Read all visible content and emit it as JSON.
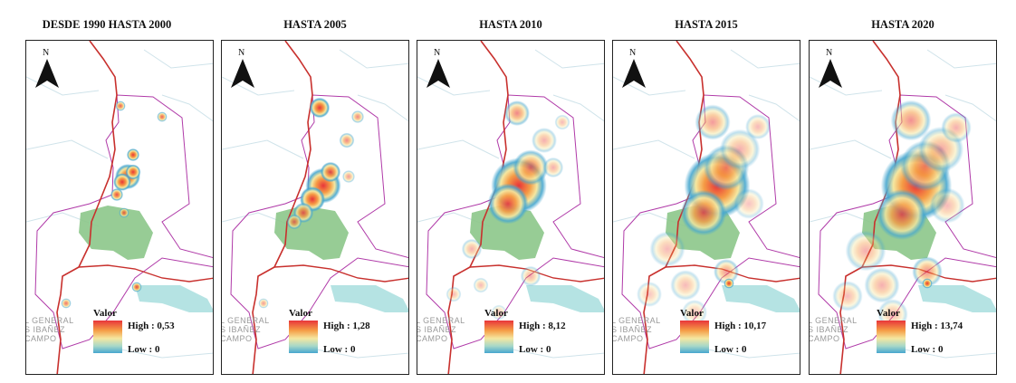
{
  "panels": [
    {
      "title": "DESDE 1990 HASTA 2000",
      "legend_title": "Valor",
      "high": "High : 0,53",
      "low": "Low : 0",
      "place_label": [
        "L GENERAL",
        "S IBAÑEZ",
        "CAMPO"
      ]
    },
    {
      "title": "HASTA 2005",
      "legend_title": "Valor",
      "high": "High : 1,28",
      "low": "Low : 0",
      "place_label": [
        "L GENERAL",
        "S IBAÑEZ",
        "CAMPO"
      ]
    },
    {
      "title": "HASTA 2010",
      "legend_title": "Valor",
      "high": "High : 8,12",
      "low": "Low : 0",
      "place_label": [
        "L GENERAL",
        "S IBAÑEZ",
        "CAMPO"
      ]
    },
    {
      "title": "HASTA 2015",
      "legend_title": "Valor",
      "high": "High : 10,17",
      "low": "Low : 0",
      "place_label": [
        "L GENERAL",
        "S IBAÑEZ",
        "CAMPO"
      ]
    },
    {
      "title": "HASTA 2020",
      "legend_title": "Valor",
      "high": "High : 13,74",
      "low": "Low : 0",
      "place_label": [
        "L GENERAL",
        "S IBAÑEZ",
        "CAMPO"
      ]
    }
  ],
  "north_label": "N",
  "colors": {
    "boundary": "#c8302d",
    "commune": "#b03aa8",
    "lake": "#b5e3e3",
    "park": "#8cc68a",
    "high": "#e8353a",
    "low": "#47a7cf"
  }
}
